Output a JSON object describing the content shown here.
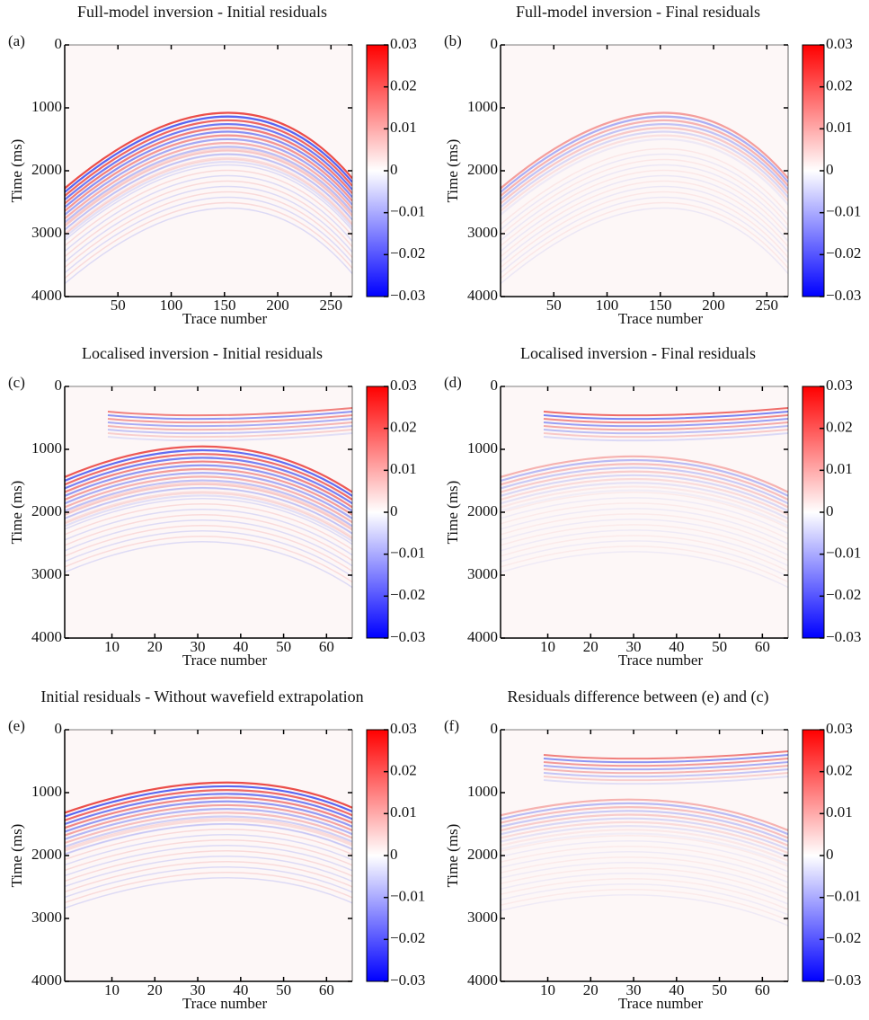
{
  "chart_data": [
    {
      "type": "heatmap",
      "panel_label": "(a)",
      "title": "Full-model inversion - Initial residuals",
      "xlabel": "Trace number",
      "ylabel": "Time (ms)",
      "xlim": [
        0,
        270
      ],
      "xticks": [
        50,
        100,
        150,
        200,
        250
      ],
      "ylim": [
        0,
        4000
      ],
      "yticks": [
        0,
        1000,
        2000,
        3000,
        4000
      ],
      "y_inverted": true,
      "colorbar": {
        "lim": [
          -0.03,
          0.03
        ],
        "ticks": [
          0.03,
          0.02,
          0.01,
          0,
          {
            "value": -0.01,
            "label": "−0.01"
          },
          {
            "value": -0.02,
            "label": "−0.02"
          },
          {
            "value": -0.03,
            "label": "−0.03"
          }
        ],
        "colors": [
          "#0000ff",
          "#ffffff",
          "#ff0000"
        ]
      }
    },
    {
      "type": "heatmap",
      "panel_label": "(b)",
      "title": "Full-model inversion - Final residuals",
      "xlabel": "Trace number",
      "ylabel": "Time (ms)",
      "xlim": [
        0,
        270
      ],
      "xticks": [
        50,
        100,
        150,
        200,
        250
      ],
      "ylim": [
        0,
        4000
      ],
      "yticks": [
        0,
        1000,
        2000,
        3000,
        4000
      ],
      "y_inverted": true,
      "colorbar": {
        "lim": [
          -0.03,
          0.03
        ],
        "ticks": [
          0.03,
          0.02,
          0.01,
          0,
          {
            "value": -0.01,
            "label": "−0.01"
          },
          {
            "value": -0.02,
            "label": "−0.02"
          },
          {
            "value": -0.03,
            "label": "−0.03"
          }
        ],
        "colors": [
          "#0000ff",
          "#ffffff",
          "#ff0000"
        ]
      }
    },
    {
      "type": "heatmap",
      "panel_label": "(c)",
      "title": "Localised inversion - Initial residuals",
      "xlabel": "Trace number",
      "ylabel": "Time (ms)",
      "xlim": [
        -1,
        66
      ],
      "xticks": [
        10,
        20,
        30,
        40,
        50,
        60
      ],
      "ylim": [
        0,
        4000
      ],
      "yticks": [
        0,
        1000,
        2000,
        3000,
        4000
      ],
      "y_inverted": true,
      "colorbar": {
        "lim": [
          -0.03,
          0.03
        ],
        "ticks": [
          0.03,
          0.02,
          0.01,
          0,
          {
            "value": -0.01,
            "label": "−0.01"
          },
          {
            "value": -0.02,
            "label": "−0.02"
          },
          {
            "value": -0.03,
            "label": "−0.03"
          }
        ],
        "colors": [
          "#0000ff",
          "#ffffff",
          "#ff0000"
        ]
      }
    },
    {
      "type": "heatmap",
      "panel_label": "(d)",
      "title": "Localised inversion - Final residuals",
      "xlabel": "Trace number",
      "ylabel": "Time (ms)",
      "xlim": [
        -1,
        66
      ],
      "xticks": [
        10,
        20,
        30,
        40,
        50,
        60
      ],
      "ylim": [
        0,
        4000
      ],
      "yticks": [
        0,
        1000,
        2000,
        3000,
        4000
      ],
      "y_inverted": true,
      "colorbar": {
        "lim": [
          -0.03,
          0.03
        ],
        "ticks": [
          0.03,
          0.02,
          0.01,
          0,
          {
            "value": -0.01,
            "label": "−0.01"
          },
          {
            "value": -0.02,
            "label": "−0.02"
          },
          {
            "value": -0.03,
            "label": "−0.03"
          }
        ],
        "colors": [
          "#0000ff",
          "#ffffff",
          "#ff0000"
        ]
      }
    },
    {
      "type": "heatmap",
      "panel_label": "(e)",
      "title": "Initial residuals - Without wavefield extrapolation",
      "xlabel": "Trace number",
      "ylabel": "Time (ms)",
      "xlim": [
        -1,
        66
      ],
      "xticks": [
        10,
        20,
        30,
        40,
        50,
        60
      ],
      "ylim": [
        0,
        4000
      ],
      "yticks": [
        0,
        1000,
        2000,
        3000,
        4000
      ],
      "y_inverted": true,
      "colorbar": {
        "lim": [
          -0.03,
          0.03
        ],
        "ticks": [
          0.03,
          0.02,
          0.01,
          0,
          {
            "value": -0.01,
            "label": "−0.01"
          },
          {
            "value": -0.02,
            "label": "−0.02"
          },
          {
            "value": -0.03,
            "label": "−0.03"
          }
        ],
        "colors": [
          "#0000ff",
          "#ffffff",
          "#ff0000"
        ]
      }
    },
    {
      "type": "heatmap",
      "panel_label": "(f)",
      "title": "Residuals difference between (e) and (c)",
      "xlabel": "Trace number",
      "ylabel": "Time (ms)",
      "xlim": [
        -1,
        66
      ],
      "xticks": [
        10,
        20,
        30,
        40,
        50,
        60
      ],
      "ylim": [
        0,
        4000
      ],
      "yticks": [
        0,
        1000,
        2000,
        3000,
        4000
      ],
      "y_inverted": true,
      "colorbar": {
        "lim": [
          -0.03,
          0.03
        ],
        "ticks": [
          0.03,
          0.02,
          0.01,
          0,
          {
            "value": -0.01,
            "label": "−0.01"
          },
          {
            "value": -0.02,
            "label": "−0.02"
          },
          {
            "value": -0.03,
            "label": "−0.03"
          }
        ],
        "colors": [
          "#0000ff",
          "#ffffff",
          "#ff0000"
        ]
      }
    }
  ]
}
